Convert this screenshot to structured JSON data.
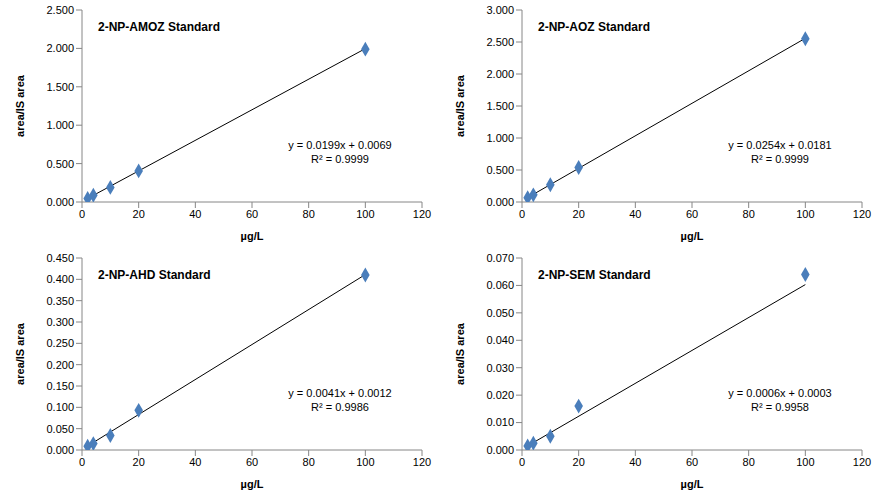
{
  "chart_data": [
    {
      "type": "scatter",
      "title": "2-NP-AMOZ Standard",
      "x_label": "µg/L",
      "y_label": "area/IS area",
      "x": [
        2,
        4,
        10,
        20,
        100
      ],
      "values": [
        0.047,
        0.088,
        0.19,
        0.405,
        1.99
      ],
      "color": "#4a7ebb",
      "marker": "diamond",
      "trendline": {
        "slope": 0.0199,
        "intercept": 0.0069
      },
      "annotations": [
        "y = 0.0199x + 0.0069",
        "R² = 0.9999"
      ],
      "xlim": [
        0,
        120
      ],
      "xticks": [
        0,
        20,
        40,
        60,
        80,
        100,
        120
      ],
      "ylim": [
        0,
        2.5
      ],
      "yticks": [
        {
          "value": 0,
          "label": "0.000"
        },
        {
          "value": 0.5,
          "label": "0.500"
        },
        {
          "value": 1,
          "label": "1.000"
        },
        {
          "value": 1.5,
          "label": "1.500"
        },
        {
          "value": 2,
          "label": "2.000"
        },
        {
          "value": 2.5,
          "label": "2.500"
        }
      ],
      "grid": false
    },
    {
      "type": "scatter",
      "title": "2-NP-AOZ Standard",
      "x_label": "µg/L",
      "y_label": "area/IS area",
      "x": [
        2,
        4,
        10,
        20,
        100
      ],
      "values": [
        0.068,
        0.112,
        0.27,
        0.54,
        2.55
      ],
      "color": "#4a7ebb",
      "marker": "diamond",
      "trendline": {
        "slope": 0.0254,
        "intercept": 0.0181
      },
      "annotations": [
        "y = 0.0254x + 0.0181",
        "R² = 0.9999"
      ],
      "xlim": [
        0,
        120
      ],
      "xticks": [
        0,
        20,
        40,
        60,
        80,
        100,
        120
      ],
      "ylim": [
        0,
        3
      ],
      "yticks": [
        {
          "value": 0,
          "label": "0.000"
        },
        {
          "value": 0.5,
          "label": "0.500"
        },
        {
          "value": 1,
          "label": "1.000"
        },
        {
          "value": 1.5,
          "label": "1.500"
        },
        {
          "value": 2,
          "label": "2.000"
        },
        {
          "value": 2.5,
          "label": "2.500"
        },
        {
          "value": 3,
          "label": "3.000"
        }
      ],
      "grid": false
    },
    {
      "type": "scatter",
      "title": "2-NP-AHD Standard",
      "x_label": "µg/L",
      "y_label": "area/IS area",
      "x": [
        2,
        4,
        10,
        20,
        100
      ],
      "values": [
        0.009,
        0.015,
        0.034,
        0.093,
        0.41
      ],
      "color": "#4a7ebb",
      "marker": "diamond",
      "trendline": {
        "slope": 0.0041,
        "intercept": 0.0012
      },
      "annotations": [
        "y = 0.0041x + 0.0012",
        "R² = 0.9986"
      ],
      "xlim": [
        0,
        120
      ],
      "xticks": [
        0,
        20,
        40,
        60,
        80,
        100,
        120
      ],
      "ylim": [
        0,
        0.45
      ],
      "yticks": [
        {
          "value": 0,
          "label": "0.000"
        },
        {
          "value": 0.05,
          "label": "0.050"
        },
        {
          "value": 0.1,
          "label": "0.100"
        },
        {
          "value": 0.15,
          "label": "0.150"
        },
        {
          "value": 0.2,
          "label": "0.200"
        },
        {
          "value": 0.25,
          "label": "0.250"
        },
        {
          "value": 0.3,
          "label": "0.300"
        },
        {
          "value": 0.35,
          "label": "0.350"
        },
        {
          "value": 0.4,
          "label": "0.400"
        },
        {
          "value": 0.45,
          "label": "0.450"
        }
      ],
      "grid": false
    },
    {
      "type": "scatter",
      "title": "2-NP-SEM Standard",
      "x_label": "µg/L",
      "y_label": "area/IS area",
      "x": [
        2,
        4,
        10,
        20,
        100
      ],
      "values": [
        0.0015,
        0.0025,
        0.005,
        0.016,
        0.064
      ],
      "color": "#4a7ebb",
      "marker": "diamond",
      "trendline": {
        "slope": 0.0006,
        "intercept": 0.0003
      },
      "annotations": [
        "y = 0.0006x + 0.0003",
        "R² = 0.9958"
      ],
      "xlim": [
        0,
        120
      ],
      "xticks": [
        0,
        20,
        40,
        60,
        80,
        100,
        120
      ],
      "ylim": [
        0,
        0.07
      ],
      "yticks": [
        {
          "value": 0,
          "label": "0.000"
        },
        {
          "value": 0.01,
          "label": "0.010"
        },
        {
          "value": 0.02,
          "label": "0.020"
        },
        {
          "value": 0.03,
          "label": "0.030"
        },
        {
          "value": 0.04,
          "label": "0.040"
        },
        {
          "value": 0.05,
          "label": "0.050"
        },
        {
          "value": 0.06,
          "label": "0.060"
        },
        {
          "value": 0.07,
          "label": "0.070"
        }
      ],
      "grid": false
    }
  ]
}
